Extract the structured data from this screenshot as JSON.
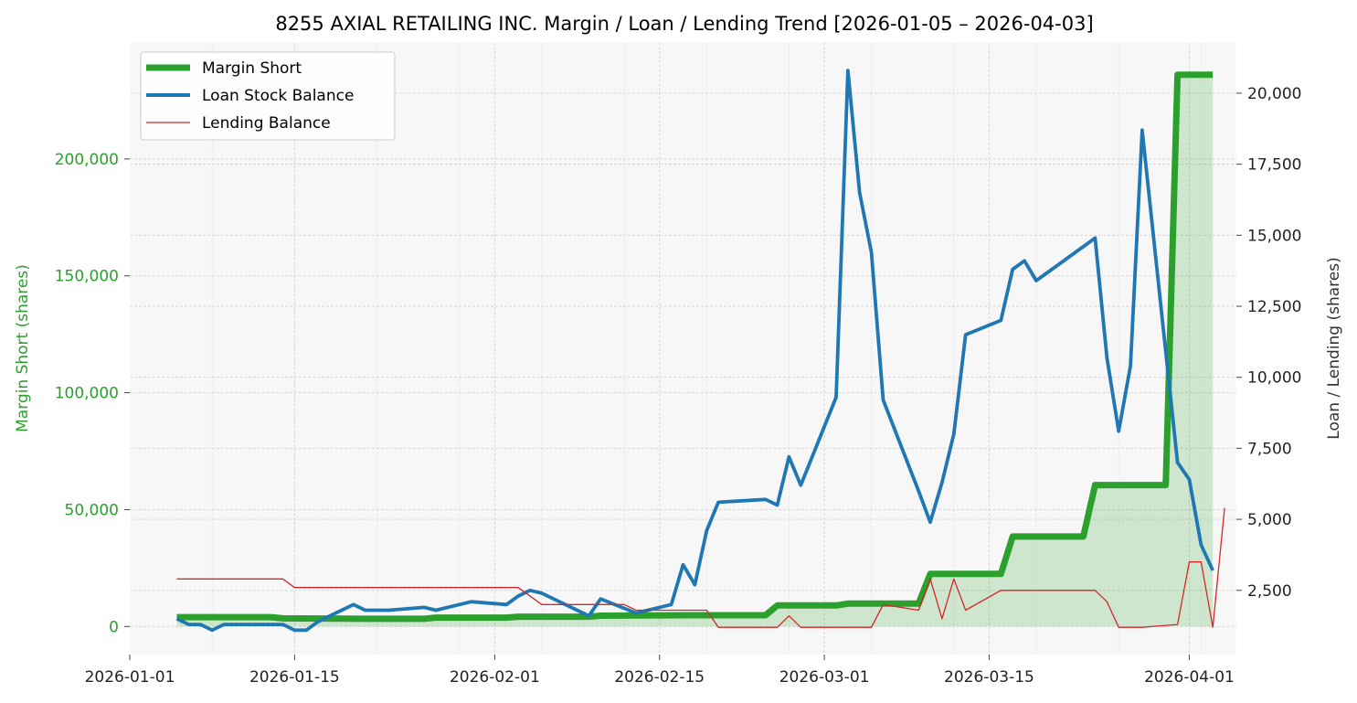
{
  "chart_data": {
    "type": "line",
    "title": "8255 AXIAL RETAILING INC. Margin / Loan / Lending Trend [2026-01-05 – 2026-04-03]",
    "ylabel_left": "Margin Short (shares)",
    "ylabel_right": "Loan / Lending (shares)",
    "x_range": [
      "2026-01-01",
      "2026-04-05"
    ],
    "ylim_left": [
      -12000,
      250000
    ],
    "ylim_right": [
      240,
      21800
    ],
    "x_ticks": [
      "2026-01-01",
      "2026-01-15",
      "2026-02-01",
      "2026-02-15",
      "2026-03-01",
      "2026-03-15",
      "2026-04-01"
    ],
    "y_ticks_left": [
      0,
      50000,
      100000,
      150000,
      200000
    ],
    "y_ticks_right": [
      2500,
      5000,
      7500,
      10000,
      12500,
      15000,
      17500,
      20000
    ],
    "y_tick_labels_left": [
      "0",
      "50,000",
      "100,000",
      "150,000",
      "200,000"
    ],
    "y_tick_labels_right": [
      "2,500",
      "5,000",
      "7,500",
      "10,000",
      "12,500",
      "15,000",
      "17,500",
      "20,000"
    ],
    "grid": true,
    "legend_position": "top-left",
    "series": [
      {
        "name": "Margin Short",
        "axis": "left",
        "color": "#2ca02c",
        "style": "thick-line-with-fill",
        "points": [
          [
            "2026-01-05",
            4000
          ],
          [
            "2026-01-13",
            4000
          ],
          [
            "2026-01-14",
            3500
          ],
          [
            "2026-01-21",
            3300
          ],
          [
            "2026-01-26",
            3300
          ],
          [
            "2026-01-27",
            3800
          ],
          [
            "2026-02-02",
            3800
          ],
          [
            "2026-02-03",
            4200
          ],
          [
            "2026-02-09",
            4200
          ],
          [
            "2026-02-10",
            4600
          ],
          [
            "2026-02-17",
            4800
          ],
          [
            "2026-02-24",
            4800
          ],
          [
            "2026-02-25",
            9000
          ],
          [
            "2026-03-02",
            9000
          ],
          [
            "2026-03-03",
            9800
          ],
          [
            "2026-03-09",
            9800
          ],
          [
            "2026-03-10",
            22500
          ],
          [
            "2026-03-16",
            22500
          ],
          [
            "2026-03-17",
            38500
          ],
          [
            "2026-03-23",
            38500
          ],
          [
            "2026-03-24",
            60500
          ],
          [
            "2026-03-30",
            60500
          ],
          [
            "2026-03-31",
            236000
          ],
          [
            "2026-04-03",
            236000
          ]
        ]
      },
      {
        "name": "Loan Stock Balance",
        "axis": "right",
        "color": "#1f77b4",
        "style": "line",
        "points": [
          [
            "2026-01-05",
            1500
          ],
          [
            "2026-01-06",
            1300
          ],
          [
            "2026-01-07",
            1300
          ],
          [
            "2026-01-08",
            1100
          ],
          [
            "2026-01-09",
            1300
          ],
          [
            "2026-01-13",
            1300
          ],
          [
            "2026-01-14",
            1300
          ],
          [
            "2026-01-15",
            1100
          ],
          [
            "2026-01-16",
            1100
          ],
          [
            "2026-01-17",
            1400
          ],
          [
            "2026-01-20",
            2000
          ],
          [
            "2026-01-21",
            1800
          ],
          [
            "2026-01-23",
            1800
          ],
          [
            "2026-01-26",
            1900
          ],
          [
            "2026-01-27",
            1800
          ],
          [
            "2026-01-30",
            2100
          ],
          [
            "2026-02-02",
            2000
          ],
          [
            "2026-02-03",
            2300
          ],
          [
            "2026-02-04",
            2500
          ],
          [
            "2026-02-05",
            2400
          ],
          [
            "2026-02-08",
            1800
          ],
          [
            "2026-02-09",
            1600
          ],
          [
            "2026-02-10",
            2200
          ],
          [
            "2026-02-13",
            1700
          ],
          [
            "2026-02-16",
            2000
          ],
          [
            "2026-02-17",
            3400
          ],
          [
            "2026-02-18",
            2700
          ],
          [
            "2026-02-19",
            4600
          ],
          [
            "2026-02-20",
            5600
          ],
          [
            "2026-02-24",
            5700
          ],
          [
            "2026-02-25",
            5500
          ],
          [
            "2026-02-26",
            7200
          ],
          [
            "2026-02-27",
            6200
          ],
          [
            "2026-03-02",
            9300
          ],
          [
            "2026-03-03",
            20800
          ],
          [
            "2026-03-04",
            16500
          ],
          [
            "2026-03-05",
            14400
          ],
          [
            "2026-03-06",
            9200
          ],
          [
            "2026-03-09",
            6000
          ],
          [
            "2026-03-10",
            4900
          ],
          [
            "2026-03-11",
            6300
          ],
          [
            "2026-03-12",
            8000
          ],
          [
            "2026-03-13",
            11500
          ],
          [
            "2026-03-16",
            12000
          ],
          [
            "2026-03-17",
            13800
          ],
          [
            "2026-03-18",
            14100
          ],
          [
            "2026-03-19",
            13400
          ],
          [
            "2026-03-24",
            14900
          ],
          [
            "2026-03-25",
            10700
          ],
          [
            "2026-03-26",
            8100
          ],
          [
            "2026-03-27",
            10400
          ],
          [
            "2026-03-28",
            18700
          ],
          [
            "2026-03-31",
            7000
          ],
          [
            "2026-04-01",
            6400
          ],
          [
            "2026-04-02",
            4100
          ],
          [
            "2026-04-03",
            3200
          ]
        ]
      },
      {
        "name": "Lending Balance",
        "axis": "right",
        "color": "#d62728",
        "style": "thin-line",
        "points": [
          [
            "2026-01-05",
            2900
          ],
          [
            "2026-01-14",
            2900
          ],
          [
            "2026-01-15",
            2600
          ],
          [
            "2026-02-03",
            2600
          ],
          [
            "2026-02-05",
            2000
          ],
          [
            "2026-02-12",
            2000
          ],
          [
            "2026-02-13",
            1800
          ],
          [
            "2026-02-19",
            1800
          ],
          [
            "2026-02-20",
            1200
          ],
          [
            "2026-02-25",
            1200
          ],
          [
            "2026-02-26",
            1600
          ],
          [
            "2026-02-27",
            1200
          ],
          [
            "2026-03-05",
            1200
          ],
          [
            "2026-03-06",
            2000
          ],
          [
            "2026-03-09",
            1800
          ],
          [
            "2026-03-10",
            2900
          ],
          [
            "2026-03-11",
            1500
          ],
          [
            "2026-03-12",
            2900
          ],
          [
            "2026-03-13",
            1800
          ],
          [
            "2026-03-16",
            2500
          ],
          [
            "2026-03-24",
            2500
          ],
          [
            "2026-03-25",
            2100
          ],
          [
            "2026-03-26",
            1200
          ],
          [
            "2026-03-28",
            1200
          ],
          [
            "2026-03-31",
            1300
          ],
          [
            "2026-04-01",
            3500
          ],
          [
            "2026-04-02",
            3500
          ],
          [
            "2026-04-03",
            1200
          ],
          [
            "2026-04-04",
            5400
          ]
        ]
      }
    ]
  }
}
